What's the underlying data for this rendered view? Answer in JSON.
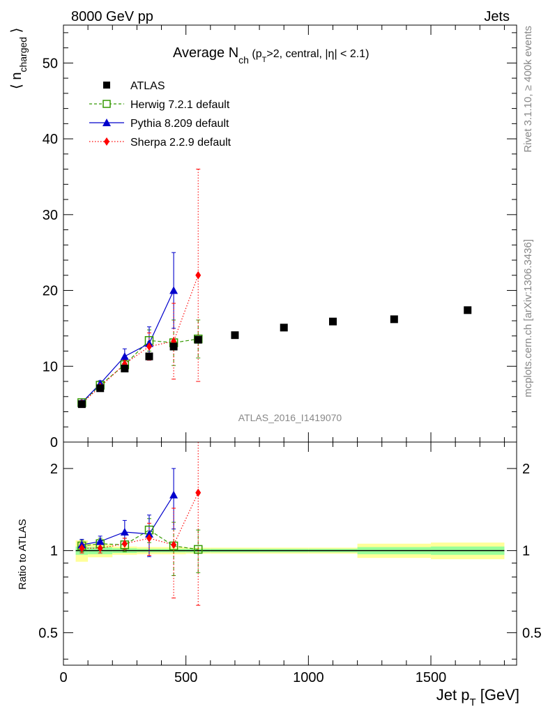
{
  "header": {
    "left": "8000 GeV pp",
    "right": "Jets",
    "right_side_top": "Rivet 3.1.10, ≥ 400k events",
    "right_side_bottom": "mcplots.cern.ch [arXiv:1306.3436]"
  },
  "chart_data": [
    {
      "type": "scatter",
      "panel": "main",
      "title": {
        "prefix": "Average N",
        "sub1": "ch",
        "mid1": " (p",
        "sub2": "T",
        "rest": ">2, central, |η| < 2.1)"
      },
      "ylabel": {
        "main": "⟨ n",
        "sub": "charged",
        "close": " ⟩"
      },
      "xlim": [
        0,
        1850
      ],
      "ylim": [
        0,
        55
      ],
      "yticks": [
        0,
        10,
        20,
        30,
        40,
        50
      ],
      "analysis_label": "ATLAS_2016_I1419070",
      "legend_position": "top-left",
      "series": [
        {
          "name": "ATLAS",
          "marker": "square",
          "color": "#000000",
          "x": [
            75,
            150,
            250,
            350,
            450,
            550,
            700,
            900,
            1100,
            1350,
            1650
          ],
          "y": [
            5.0,
            7.1,
            9.7,
            11.3,
            12.6,
            13.5,
            14.1,
            15.1,
            15.9,
            16.2,
            17.4
          ]
        },
        {
          "name": "Herwig 7.2.1 default",
          "marker": "open-square",
          "line": "dashed",
          "color": "#339900",
          "x": [
            75,
            150,
            250,
            350,
            450,
            550
          ],
          "y": [
            5.2,
            7.5,
            10.2,
            13.4,
            13.1,
            13.6
          ],
          "err": [
            0.3,
            0.4,
            0.6,
            1.4,
            3.0,
            2.5
          ]
        },
        {
          "name": "Pythia 8.209 default",
          "marker": "triangle",
          "line": "solid",
          "color": "#0000cc",
          "x": [
            75,
            150,
            250,
            350,
            450
          ],
          "y": [
            5.2,
            7.7,
            11.3,
            13.0,
            20.0
          ],
          "err": [
            0.3,
            0.4,
            1.0,
            2.2,
            5.0
          ]
        },
        {
          "name": "Sherpa 2.2.9 default",
          "marker": "diamond",
          "line": "dotted",
          "color": "#ff0000",
          "x": [
            75,
            150,
            250,
            350,
            450,
            550
          ],
          "y": [
            5.1,
            7.3,
            10.3,
            12.6,
            13.3,
            22.0
          ],
          "err": [
            0.3,
            0.3,
            0.5,
            1.8,
            5.0,
            14.0
          ]
        }
      ]
    },
    {
      "type": "scatter",
      "panel": "ratio",
      "ylabel": "Ratio to ATLAS",
      "xlabel": {
        "main": "Jet p",
        "sub": "T",
        "rest": " [GeV]"
      },
      "xlim": [
        0,
        1850
      ],
      "xticks": [
        0,
        500,
        1000,
        1500
      ],
      "ylim": [
        0.38,
        2.5
      ],
      "yticks": [
        0.5,
        1,
        2
      ],
      "ytick_labels": [
        "0.5",
        "1",
        "2"
      ],
      "uncertainty_bands": [
        {
          "x0": 50,
          "x1": 100,
          "inner": 0.035,
          "outer": 0.09
        },
        {
          "x0": 100,
          "x1": 200,
          "inner": 0.03,
          "outer": 0.055
        },
        {
          "x0": 200,
          "x1": 300,
          "inner": 0.02,
          "outer": 0.035
        },
        {
          "x0": 300,
          "x1": 400,
          "inner": 0.015,
          "outer": 0.03
        },
        {
          "x0": 400,
          "x1": 500,
          "inner": 0.015,
          "outer": 0.03
        },
        {
          "x0": 500,
          "x1": 600,
          "inner": 0.015,
          "outer": 0.025
        },
        {
          "x0": 600,
          "x1": 800,
          "inner": 0.015,
          "outer": 0.025
        },
        {
          "x0": 800,
          "x1": 1000,
          "inner": 0.015,
          "outer": 0.025
        },
        {
          "x0": 1000,
          "x1": 1200,
          "inner": 0.015,
          "outer": 0.025
        },
        {
          "x0": 1200,
          "x1": 1500,
          "inner": 0.03,
          "outer": 0.06
        },
        {
          "x0": 1500,
          "x1": 1800,
          "inner": 0.035,
          "outer": 0.07
        }
      ],
      "series": [
        {
          "name": "Herwig 7.2.1 default",
          "color": "#339900",
          "x": [
            75,
            150,
            250,
            350,
            450,
            550
          ],
          "y": [
            1.04,
            1.06,
            1.05,
            1.19,
            1.04,
            1.01
          ],
          "err": [
            0.05,
            0.05,
            0.06,
            0.12,
            0.23,
            0.18
          ]
        },
        {
          "name": "Pythia 8.209 default",
          "color": "#0000cc",
          "x": [
            75,
            150,
            250,
            350,
            450
          ],
          "y": [
            1.05,
            1.08,
            1.17,
            1.15,
            1.6
          ],
          "err": [
            0.05,
            0.05,
            0.12,
            0.2,
            0.4
          ]
        },
        {
          "name": "Sherpa 2.2.9 default",
          "color": "#ff0000",
          "x": [
            75,
            150,
            250,
            350,
            450,
            550
          ],
          "y": [
            1.02,
            1.02,
            1.06,
            1.11,
            1.05,
            1.63
          ],
          "err": [
            0.04,
            0.04,
            0.05,
            0.15,
            0.38,
            1.0
          ]
        }
      ]
    }
  ]
}
